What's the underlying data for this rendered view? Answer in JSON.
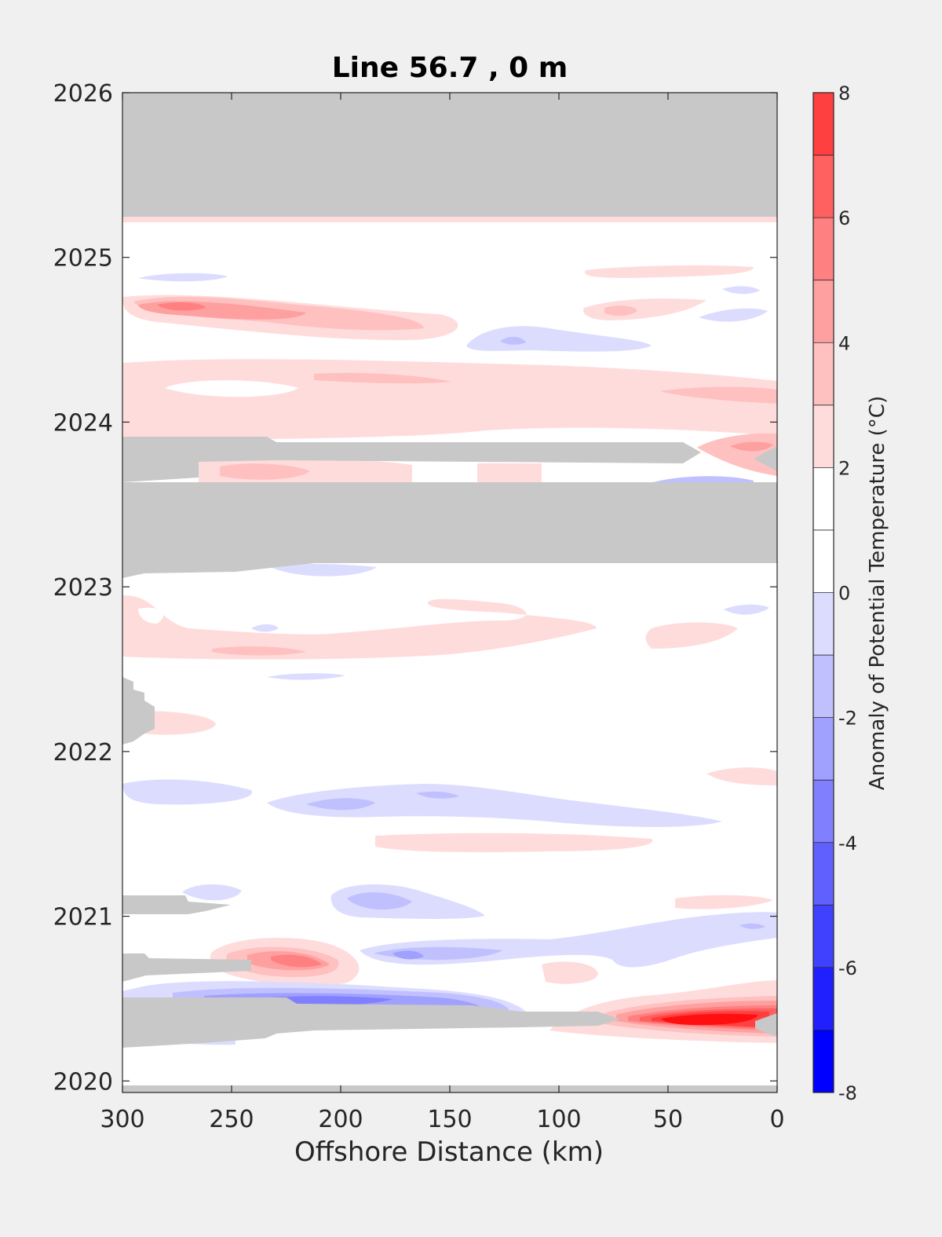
{
  "chart_data": {
    "type": "heatmap",
    "subtype": "filled-contour",
    "title": "Line 56.7 , 0 m",
    "xlabel": "Offshore Distance (km)",
    "ylabel": "",
    "xlim": [
      300,
      0
    ],
    "ylim": [
      2020,
      2026
    ],
    "xticks": [
      "300",
      "250",
      "200",
      "150",
      "100",
      "50",
      "0"
    ],
    "xtick_values": [
      300,
      250,
      200,
      150,
      100,
      50,
      0
    ],
    "yticks": [
      "2020",
      "2021",
      "2022",
      "2023",
      "2024",
      "2025",
      "2026"
    ],
    "ytick_values": [
      2020,
      2021,
      2022,
      2023,
      2024,
      2025,
      2026
    ],
    "colorbar": {
      "label": "Anomaly of Potential Temperature (°C)",
      "ticks": [
        "-8",
        "-6",
        "-4",
        "-2",
        "0",
        "2",
        "4",
        "6",
        "8"
      ],
      "tick_values": [
        -8,
        -6,
        -4,
        -2,
        0,
        2,
        4,
        6,
        8
      ],
      "levels": [
        -8,
        -7,
        -6,
        -5,
        -4,
        -3,
        -2,
        -1,
        0,
        1,
        2,
        3,
        4,
        5,
        6,
        7,
        8
      ],
      "colors": [
        "#0000ff",
        "#2020ff",
        "#4040ff",
        "#6060ff",
        "#8080ff",
        "#a0a0ff",
        "#c0c0ff",
        "#dcdcff",
        "#ffffff",
        "#ffffff",
        "#ffdcdc",
        "#ffc0c0",
        "#ffa0a0",
        "#ff8080",
        "#ff6060",
        "#ff4040",
        "#ff2020",
        "#ff0000"
      ]
    },
    "nodata_color": "#c8c8c8",
    "features": [
      {
        "kind": "nodata",
        "x": [
          300,
          0
        ],
        "y": [
          2025.25,
          2026
        ]
      },
      {
        "kind": "nodata",
        "x": [
          300,
          0
        ],
        "y": [
          2023.13,
          2023.62
        ]
      },
      {
        "kind": "nodata",
        "x": [
          300,
          40
        ],
        "y": [
          2023.72,
          2023.9
        ]
      },
      {
        "kind": "nodata",
        "x": [
          300,
          285
        ],
        "y": [
          2022.05,
          2022.45
        ]
      },
      {
        "kind": "nodata",
        "x": [
          300,
          235
        ],
        "y": [
          2021,
          2021.12
        ]
      },
      {
        "kind": "nodata",
        "x": [
          300,
          240
        ],
        "y": [
          2020.63,
          2020.78
        ]
      },
      {
        "kind": "nodata",
        "x": [
          300,
          75
        ],
        "y": [
          2020.23,
          2020.48
        ]
      },
      {
        "kind": "nodata",
        "x": [
          300,
          0
        ],
        "y": [
          2019.94,
          2019.98
        ]
      },
      {
        "kind": "anomaly",
        "cx": 265,
        "cy": 2024.7,
        "rx": 50,
        "ry": 0.06,
        "value": 4
      },
      {
        "kind": "anomaly",
        "cx": 215,
        "cy": 2024.66,
        "rx": 50,
        "ry": 0.05,
        "value": 3
      },
      {
        "kind": "anomaly",
        "cx": 150,
        "cy": 2024.63,
        "rx": 70,
        "ry": 0.08,
        "value": 2
      },
      {
        "kind": "anomaly",
        "cx": 75,
        "cy": 2024.72,
        "rx": 40,
        "ry": 0.06,
        "value": 2
      },
      {
        "kind": "anomaly",
        "cx": 130,
        "cy": 2024.47,
        "rx": 40,
        "ry": 0.06,
        "value": -1
      },
      {
        "kind": "anomaly",
        "cx": 22,
        "cy": 2023.85,
        "rx": 35,
        "ry": 0.08,
        "value": 4
      },
      {
        "kind": "anomaly",
        "cx": 230,
        "cy": 2023.67,
        "rx": 30,
        "ry": 0.06,
        "value": 2
      },
      {
        "kind": "anomaly",
        "cx": 40,
        "cy": 2023.6,
        "rx": 35,
        "ry": 0.04,
        "value": -2
      },
      {
        "kind": "anomaly",
        "cx": 220,
        "cy": 2022.6,
        "rx": 50,
        "ry": 0.04,
        "value": 2
      },
      {
        "kind": "anomaly",
        "cx": 200,
        "cy": 2021.67,
        "rx": 80,
        "ry": 0.06,
        "value": -2
      },
      {
        "kind": "anomaly",
        "cx": 200,
        "cy": 2021.11,
        "rx": 20,
        "ry": 0.06,
        "value": -2
      },
      {
        "kind": "anomaly",
        "cx": 85,
        "cy": 2021.45,
        "rx": 45,
        "ry": 0.05,
        "value": 2
      },
      {
        "kind": "anomaly",
        "cx": 219,
        "cy": 2020.68,
        "rx": 35,
        "ry": 0.07,
        "value": 4
      },
      {
        "kind": "anomaly",
        "cx": 165,
        "cy": 2020.74,
        "rx": 45,
        "ry": 0.05,
        "value": -3
      },
      {
        "kind": "anomaly",
        "cx": 180,
        "cy": 2020.48,
        "rx": 100,
        "ry": 0.07,
        "value": -4
      },
      {
        "kind": "anomaly",
        "cx": 27,
        "cy": 2020.34,
        "rx": 45,
        "ry": 0.09,
        "value": 7
      }
    ]
  }
}
